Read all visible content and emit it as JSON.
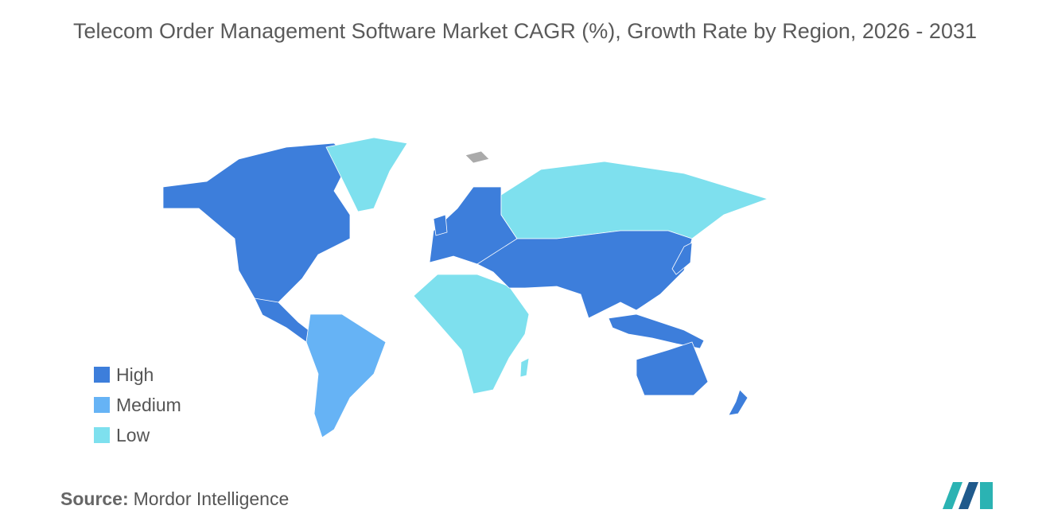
{
  "title": "Telecom Order Management Software Market CAGR (%), Growth Rate by Region, 2026 - 2031",
  "legend": [
    {
      "label": "High",
      "color": "#3d7edb"
    },
    {
      "label": "Medium",
      "color": "#66b3f5"
    },
    {
      "label": "Low",
      "color": "#7ee0ee"
    }
  ],
  "source": {
    "label": "Source:",
    "name": "Mordor Intelligence"
  }
}
